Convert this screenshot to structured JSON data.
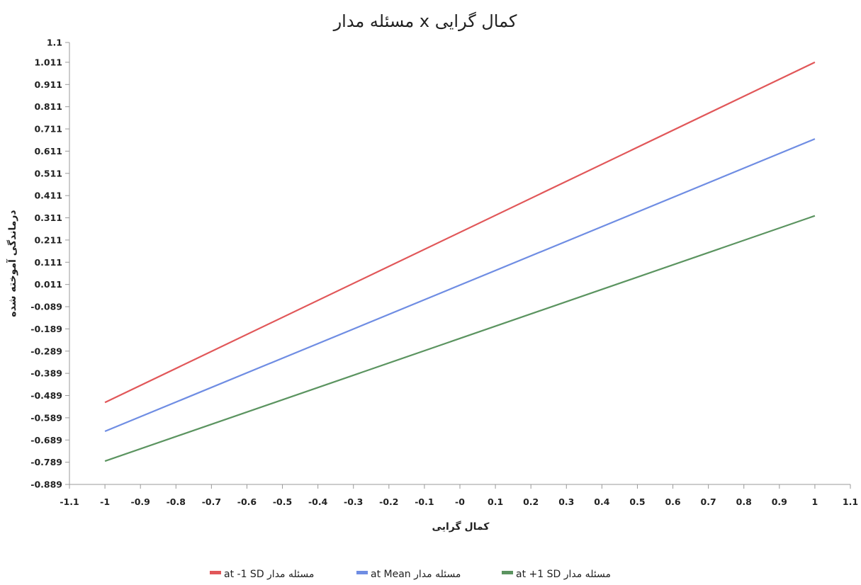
{
  "chart_data": {
    "type": "line",
    "title": "مسئله مدار x کمال گرایی",
    "xlabel": "کمال گرایی",
    "ylabel": "درماندگی آموخته شده",
    "xlim": [
      -1.1,
      1.1
    ],
    "ylim": [
      -0.889,
      1.1
    ],
    "x_ticks": [
      "-1.1",
      "-1",
      "-0.9",
      "-0.8",
      "-0.7",
      "-0.6",
      "-0.5",
      "-0.4",
      "-0.3",
      "-0.2",
      "-0.1",
      "-0",
      "0.1",
      "0.2",
      "0.3",
      "0.4",
      "0.5",
      "0.6",
      "0.7",
      "0.8",
      "0.9",
      "1",
      "1.1"
    ],
    "y_ticks": [
      "1.1",
      "1.011",
      "0.911",
      "0.811",
      "0.711",
      "0.611",
      "0.511",
      "0.411",
      "0.311",
      "0.211",
      "0.111",
      "0.011",
      "-0.089",
      "-0.189",
      "-0.289",
      "-0.389",
      "-0.489",
      "-0.589",
      "-0.689",
      "-0.789",
      "-0.889"
    ],
    "grid": false,
    "legend_position": "bottom",
    "series": [
      {
        "name": "at -1 SD مسئله مدار",
        "color": "#e15759",
        "x": [
          -1,
          1
        ],
        "y": [
          -0.52,
          1.011
        ]
      },
      {
        "name": "at Mean مسئله مدار",
        "color": "#6f8de3",
        "x": [
          -1,
          1
        ],
        "y": [
          -0.65,
          0.666
        ]
      },
      {
        "name": "at +1 SD مسئله مدار",
        "color": "#5b9460",
        "x": [
          -1,
          1
        ],
        "y": [
          -0.784,
          0.32
        ]
      }
    ]
  }
}
